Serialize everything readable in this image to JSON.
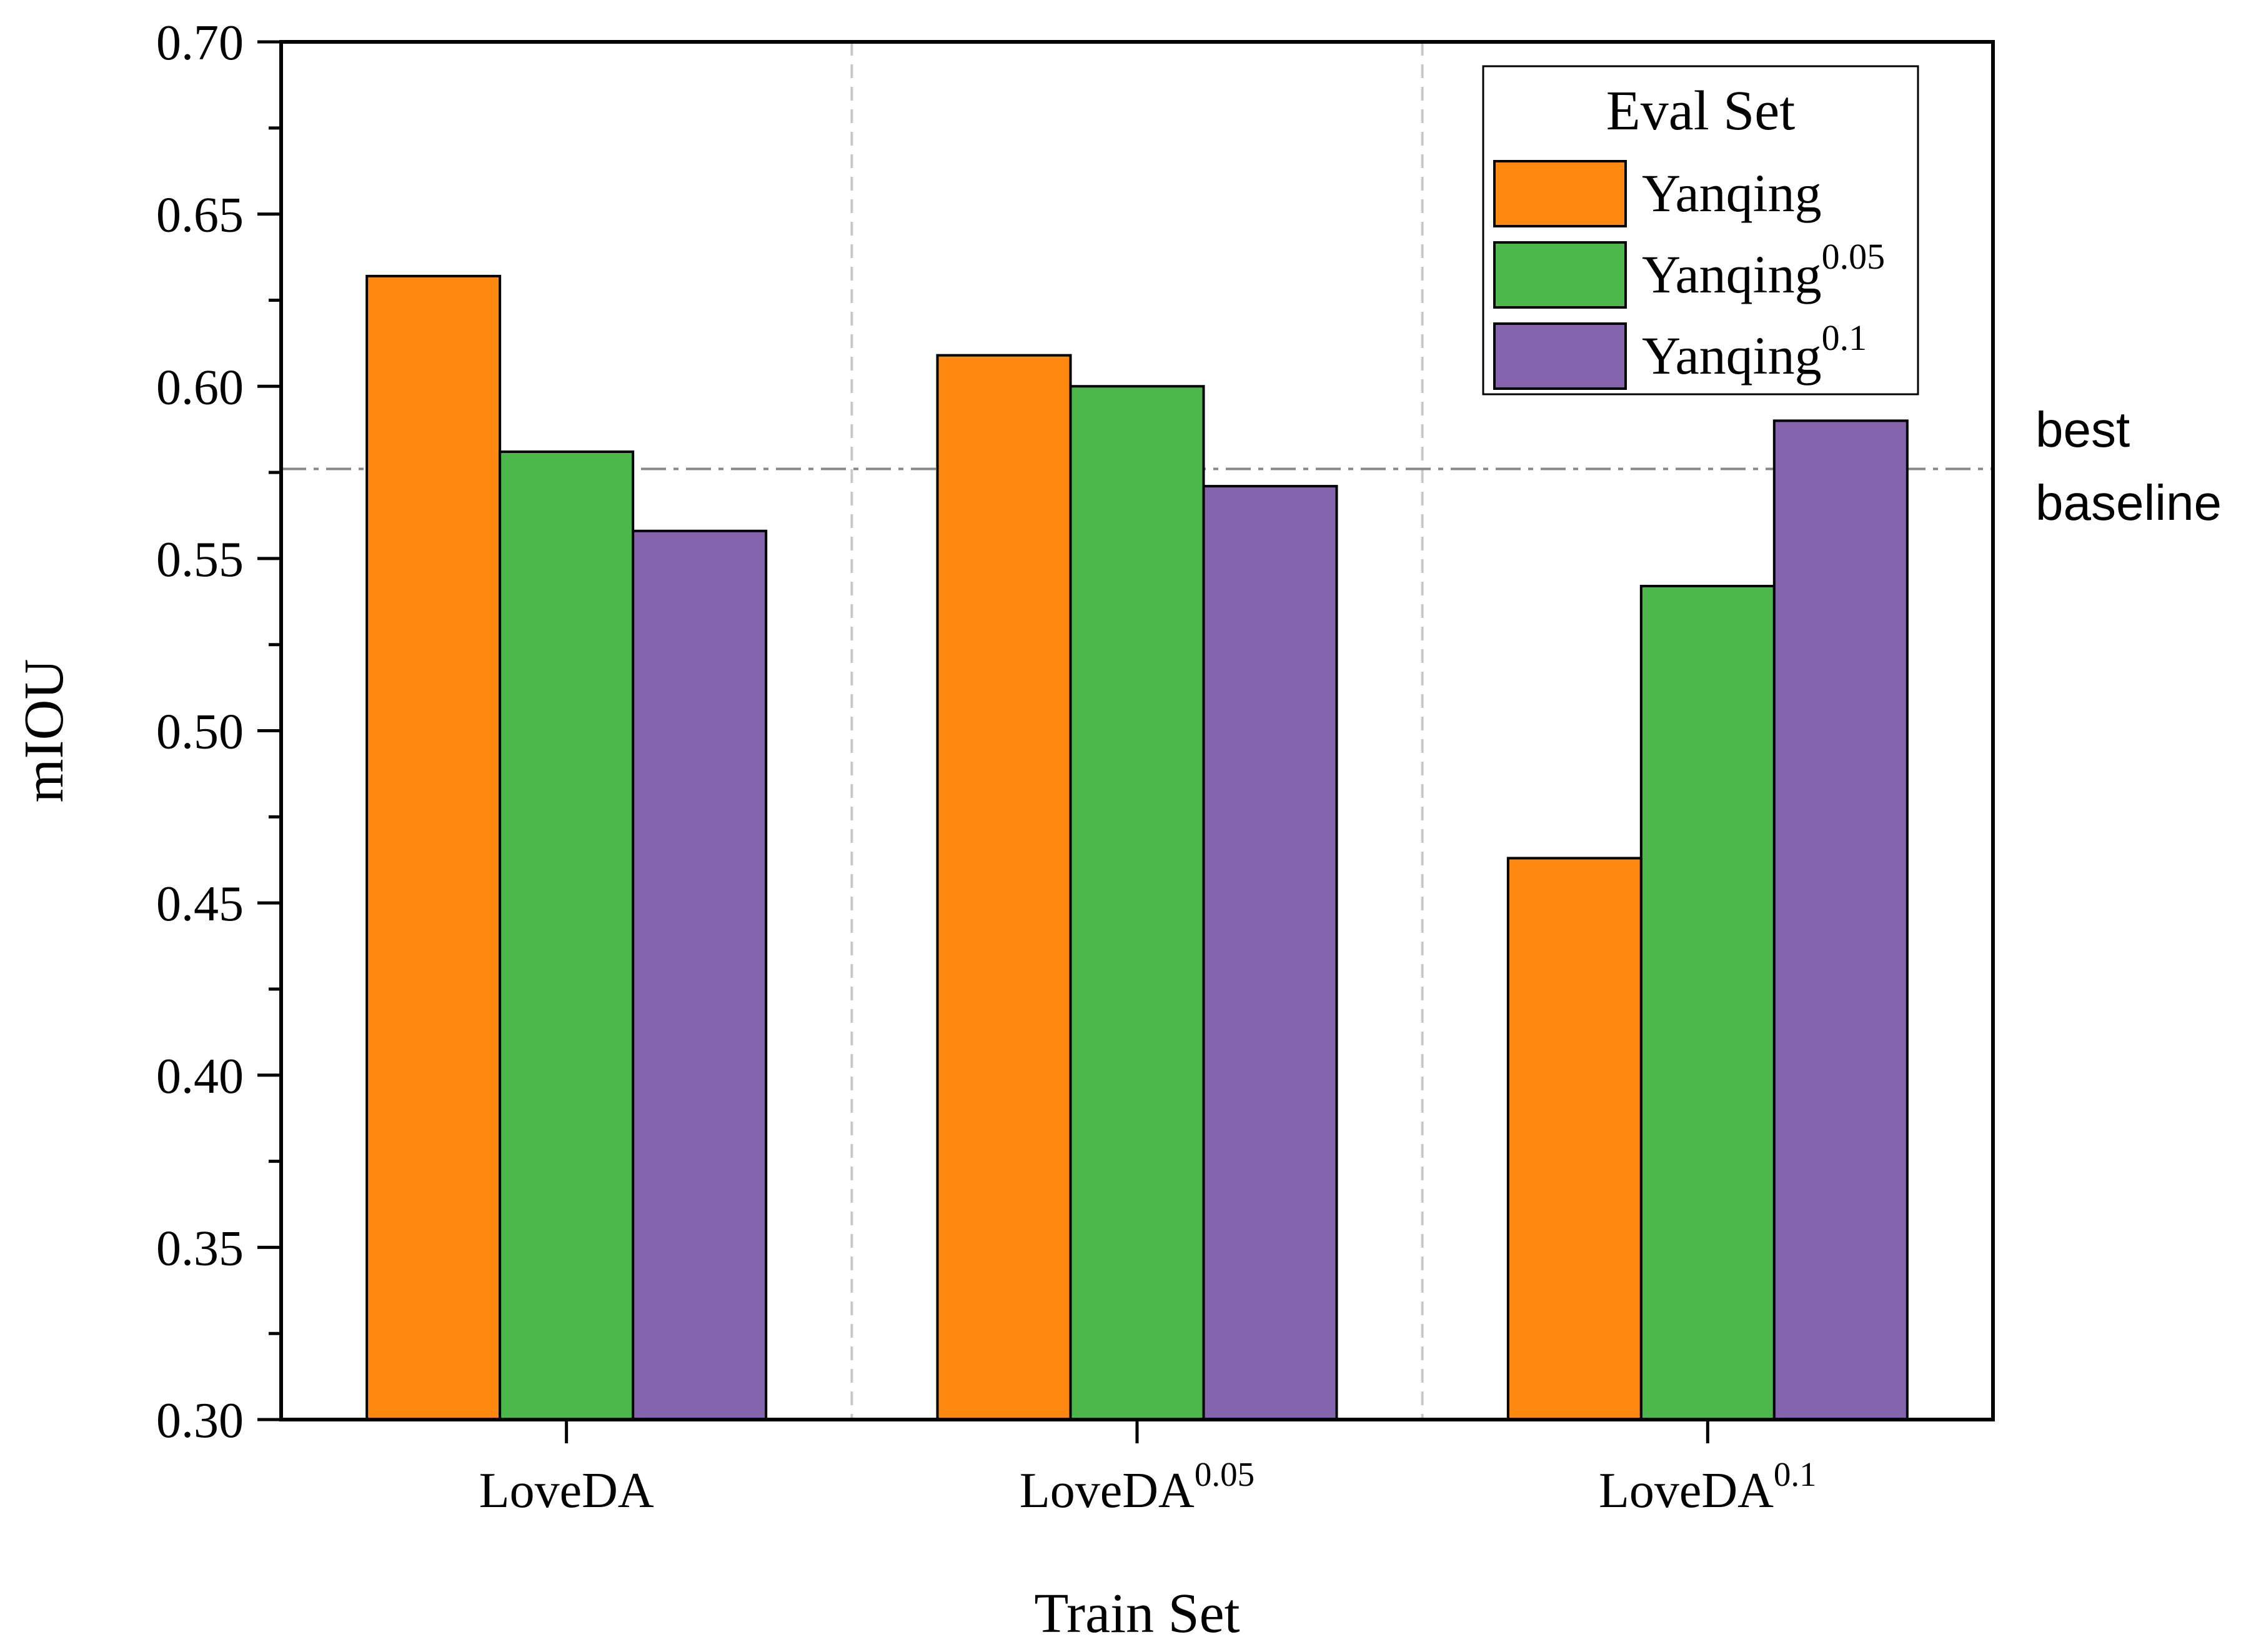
{
  "chart_data": {
    "type": "bar",
    "title": "",
    "xlabel": "Train Set",
    "ylabel": "mIOU",
    "ylim": [
      0.3,
      0.7
    ],
    "yticks": [
      "0.30",
      "0.35",
      "0.40",
      "0.45",
      "0.50",
      "0.55",
      "0.60",
      "0.65",
      "0.70"
    ],
    "categories": [
      {
        "base": "LoveDA",
        "sup": ""
      },
      {
        "base": "LoveDA",
        "sup": "0.05"
      },
      {
        "base": "LoveDA",
        "sup": "0.1"
      }
    ],
    "legend": {
      "title": "Eval Set",
      "placement": "top-right"
    },
    "series": [
      {
        "name": "Yanqing",
        "sup": "",
        "color": "#ff8811",
        "values": [
          0.632,
          0.609,
          0.463
        ]
      },
      {
        "name": "Yanqing",
        "sup": "0.05",
        "color": "#4cb84c",
        "values": [
          0.581,
          0.6,
          0.542
        ]
      },
      {
        "name": "Yanqing",
        "sup": "0.1",
        "color": "#8464ac",
        "values": [
          0.558,
          0.571,
          0.59
        ]
      }
    ],
    "reference_line": {
      "value": 0.576,
      "label_line1": "best",
      "label_line2": "baseline",
      "color": "#888888"
    },
    "grid": false,
    "category_separators": true
  }
}
